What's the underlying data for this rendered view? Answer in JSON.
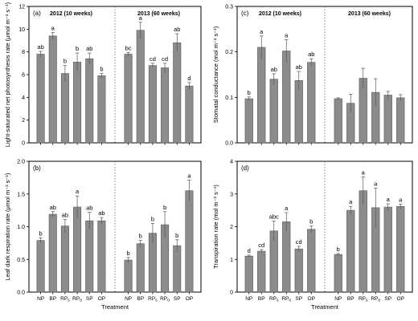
{
  "categories": [
    "NP",
    "BP",
    "RP_s",
    "RP_o",
    "SP",
    "OP"
  ],
  "x_axis_label": "Treatment",
  "bar_color": "#8c8c8c",
  "chart_data": [
    {
      "type": "bar",
      "panel": "(a)",
      "ylabel": "Light-saturated net photosynthesis rate (μmol m⁻² s⁻¹)",
      "ylim": [
        0,
        12
      ],
      "yticks": [
        0,
        2,
        4,
        6,
        8,
        10,
        12
      ],
      "groups": [
        {
          "title": "2012 (10 weeks)",
          "values": [
            7.8,
            9.4,
            6.1,
            7.1,
            7.4,
            5.9
          ],
          "errors": [
            0.25,
            0.3,
            0.7,
            0.8,
            0.5,
            0.2
          ],
          "letters": [
            "ab",
            "a",
            "b",
            "b",
            "ab",
            "b"
          ]
        },
        {
          "title": "2013 (60 weeks)",
          "values": [
            7.8,
            9.9,
            6.8,
            6.6,
            8.8,
            5.0
          ],
          "errors": [
            0.15,
            0.7,
            0.2,
            0.4,
            0.8,
            0.3
          ],
          "letters": [
            "bc",
            "a",
            "cd",
            "cd",
            "ab",
            "d"
          ]
        }
      ]
    },
    {
      "type": "bar",
      "panel": "(b)",
      "ylabel": "Leaf dark respiration rate (μmol m⁻² s⁻¹)",
      "ylim": [
        0,
        2.0
      ],
      "yticks": [
        0,
        0.5,
        1.0,
        1.5,
        2.0
      ],
      "ytick_labels": [
        "0.0",
        "0.5",
        "1.0",
        "1.5",
        "2.0"
      ],
      "groups": [
        {
          "values": [
            0.79,
            1.19,
            1.01,
            1.3,
            1.09,
            1.09
          ],
          "errors": [
            0.04,
            0.04,
            0.1,
            0.17,
            0.13,
            0.05
          ],
          "letters": [
            "b",
            "ab",
            "ab",
            "a",
            "ab",
            "ab"
          ]
        },
        {
          "values": [
            0.49,
            0.74,
            0.9,
            1.03,
            0.71,
            1.55
          ],
          "errors": [
            0.04,
            0.05,
            0.15,
            0.2,
            0.09,
            0.16
          ],
          "letters": [
            "b",
            "b",
            "b",
            "b",
            "b",
            "a"
          ]
        }
      ]
    },
    {
      "type": "bar",
      "panel": "(c)",
      "ylabel": "Stomatal conductance (mol m⁻² s⁻¹)",
      "ylim": [
        0,
        0.3
      ],
      "yticks": [
        0,
        0.1,
        0.2,
        0.3
      ],
      "ytick_labels": [
        "0.0",
        "0.1",
        "0.2",
        "0.3"
      ],
      "groups": [
        {
          "title": "2012 (10 weeks)",
          "values": [
            0.097,
            0.21,
            0.14,
            0.202,
            0.137,
            0.177
          ],
          "errors": [
            0.004,
            0.025,
            0.012,
            0.025,
            0.02,
            0.008
          ],
          "letters": [
            "b",
            "a",
            "ab",
            "a",
            "ab",
            "ab"
          ]
        },
        {
          "title": "2013 (60 weeks)",
          "values": [
            0.097,
            0.087,
            0.142,
            0.111,
            0.105,
            0.099
          ],
          "errors": [
            0.002,
            0.02,
            0.022,
            0.03,
            0.008,
            0.007
          ],
          "letters": [
            "",
            "",
            "",
            "",
            "",
            ""
          ]
        }
      ]
    },
    {
      "type": "bar",
      "panel": "(d)",
      "ylabel": "Transpiration rate (mol m⁻² s⁻¹)",
      "ylim": [
        0,
        4
      ],
      "yticks": [
        0,
        1,
        2,
        3,
        4
      ],
      "groups": [
        {
          "values": [
            1.1,
            1.25,
            1.87,
            2.15,
            1.32,
            1.92
          ],
          "errors": [
            0.03,
            0.05,
            0.3,
            0.28,
            0.08,
            0.1
          ],
          "letters": [
            "d",
            "cd",
            "abc",
            "a",
            "cd",
            "b"
          ]
        },
        {
          "values": [
            1.15,
            2.5,
            3.1,
            2.58,
            2.6,
            2.62
          ],
          "errors": [
            0.03,
            0.12,
            0.42,
            0.6,
            0.1,
            0.07
          ],
          "letters": [
            "b",
            "a",
            "a",
            "a",
            "a",
            "a"
          ]
        }
      ]
    }
  ]
}
